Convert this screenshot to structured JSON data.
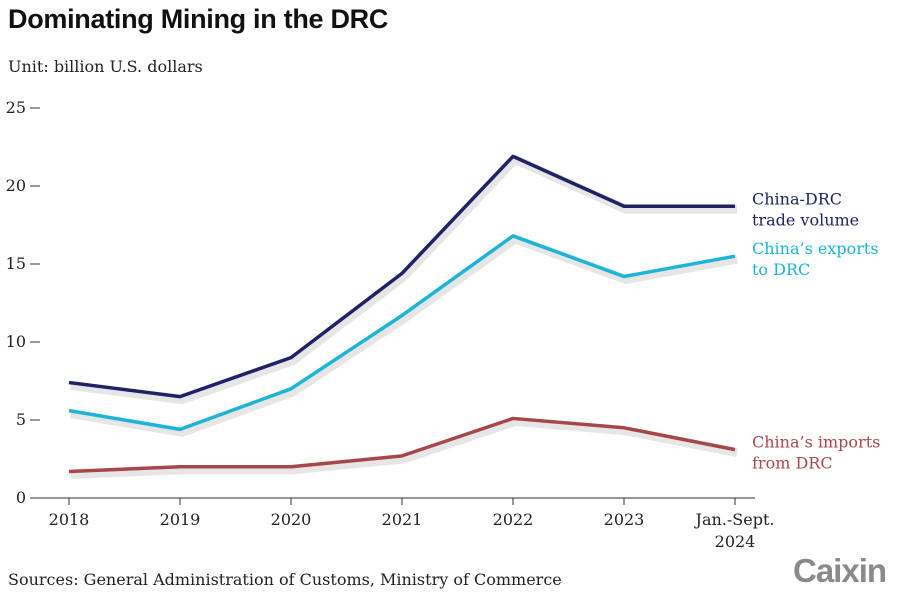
{
  "title": "Dominating Mining in the DRC",
  "unit": "Unit: billion U.S. dollars",
  "source": "Sources: General Administration of Customs, Ministry of Commerce",
  "logo": "Caixin",
  "chart_data": {
    "type": "line",
    "categories": [
      "2018",
      "2019",
      "2020",
      "2021",
      "2022",
      "2023",
      "Jan.-Sept. 2024"
    ],
    "category_lines": [
      [
        "2018"
      ],
      [
        "2019"
      ],
      [
        "2020"
      ],
      [
        "2021"
      ],
      [
        "2022"
      ],
      [
        "2023"
      ],
      [
        "Jan.-Sept.",
        "2024"
      ]
    ],
    "ylim": [
      0,
      25
    ],
    "yticks": [
      0,
      5,
      10,
      15,
      20,
      25
    ],
    "grid": false,
    "series": [
      {
        "name": "China-DRC trade volume",
        "label_lines": [
          "China-DRC",
          "trade volume"
        ],
        "color": "#1f2266",
        "values": [
          7.4,
          6.5,
          9.0,
          14.4,
          21.9,
          18.7,
          18.7
        ]
      },
      {
        "name": "China's exports to DRC",
        "label_lines": [
          "China’s exports",
          "to DRC"
        ],
        "color": "#1cb4d8",
        "values": [
          5.6,
          4.4,
          7.0,
          11.7,
          16.8,
          14.2,
          15.5
        ]
      },
      {
        "name": "China's imports from DRC",
        "label_lines": [
          "China’s imports",
          "from DRC"
        ],
        "color": "#a8474a",
        "values": [
          1.7,
          2.0,
          2.0,
          2.7,
          5.1,
          4.5,
          3.1
        ]
      }
    ]
  }
}
